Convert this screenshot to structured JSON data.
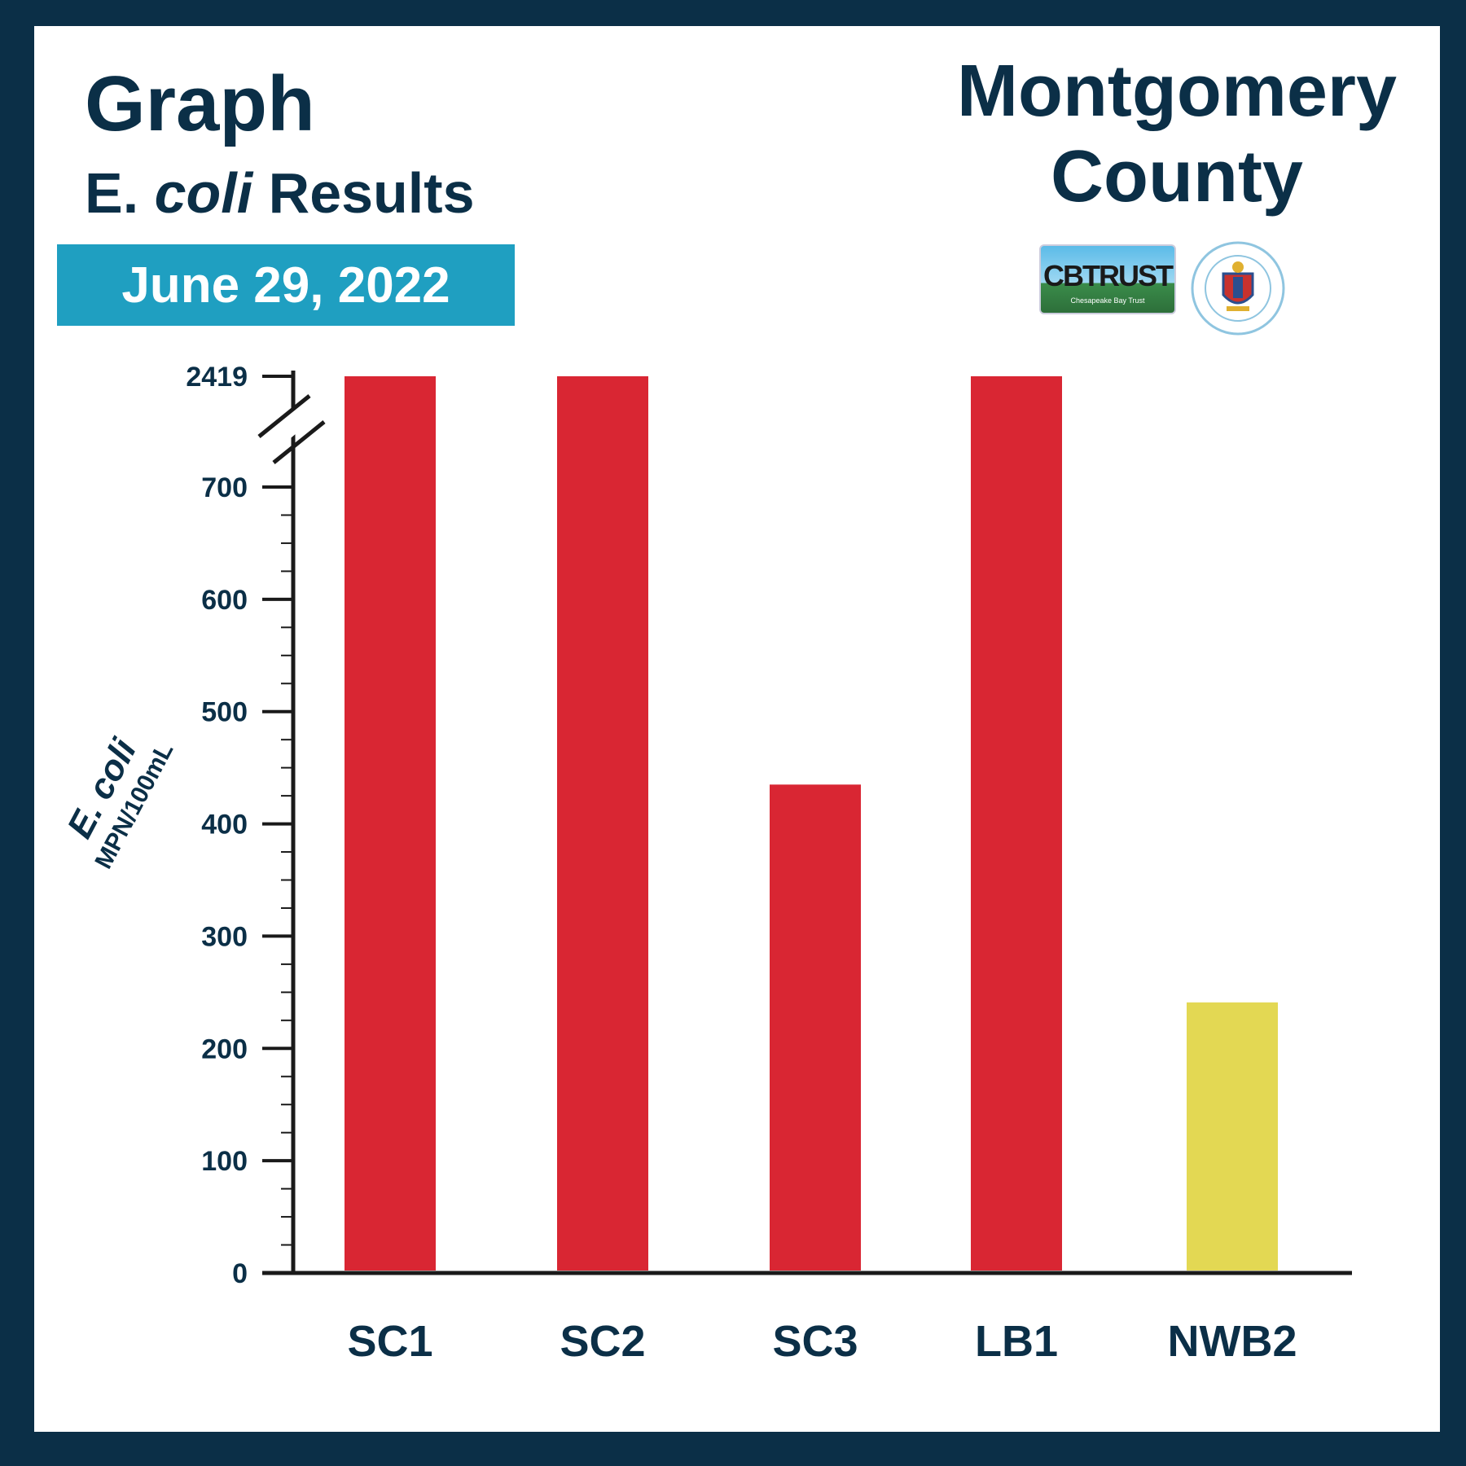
{
  "header": {
    "title": "Graph",
    "subtitle_prefix": "E. ",
    "subtitle_italic": "coli",
    "subtitle_suffix": " Results",
    "date": "June 29, 2022",
    "county_line1": "Montgomery",
    "county_line2": "County"
  },
  "logos": {
    "cbtrust": "CBTRUST",
    "cbtrust_sub": "Chesapeake Bay Trust",
    "seal_icon": "montgomery-county-maryland-seal"
  },
  "colors": {
    "frame": "#0b2f47",
    "text": "#0b2f47",
    "date_band": "#1f9fc1",
    "bar_red": "#d92633",
    "bar_yellow": "#e3d853"
  },
  "chart_data": {
    "type": "bar",
    "categories": [
      "SC1",
      "SC2",
      "SC3",
      "LB1",
      "NWB2"
    ],
    "values": [
      2419,
      2419,
      435,
      730,
      241
    ],
    "bar_colors": [
      "#d92633",
      "#d92633",
      "#d92633",
      "#d92633",
      "#e3d853"
    ],
    "ylabel": "E. coli",
    "ylabel_unit": "MPN/100mL",
    "ylim": [
      0,
      700
    ],
    "y_ticks": [
      0,
      100,
      200,
      300,
      400,
      500,
      600,
      700
    ],
    "y_break": true,
    "y_break_value": 2419,
    "grid": false,
    "legend": "none"
  }
}
